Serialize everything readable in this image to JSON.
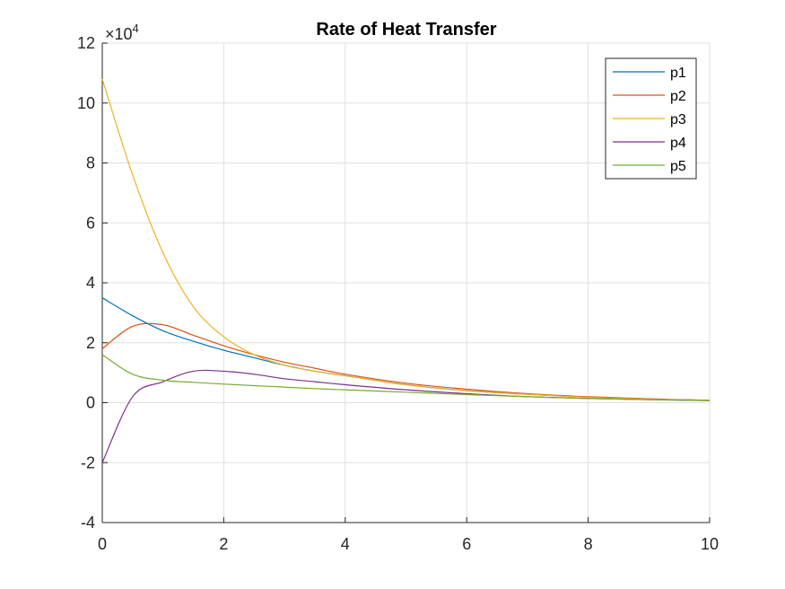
{
  "chart_data": {
    "type": "line",
    "title": "Rate of Heat Transfer",
    "xlabel": "",
    "ylabel": "",
    "y_exponent_label": "×10",
    "y_exponent_power": "4",
    "xlim": [
      0,
      10
    ],
    "ylim": [
      -4,
      12
    ],
    "x_ticks": [
      0,
      2,
      4,
      6,
      8,
      10
    ],
    "y_ticks": [
      -4,
      -2,
      0,
      2,
      4,
      6,
      8,
      10,
      12
    ],
    "grid": true,
    "legend_position": "top-right",
    "x": [
      0,
      0.5,
      1,
      1.5,
      2,
      2.5,
      3,
      3.5,
      4,
      5,
      6,
      7,
      8,
      9,
      10
    ],
    "series": [
      {
        "name": "p1",
        "color": "#0072BD",
        "values": [
          3.5,
          2.9,
          2.4,
          2.05,
          1.75,
          1.5,
          1.25,
          1.05,
          0.9,
          0.6,
          0.4,
          0.28,
          0.18,
          0.12,
          0.08
        ]
      },
      {
        "name": "p2",
        "color": "#D95319",
        "values": [
          1.8,
          2.55,
          2.6,
          2.25,
          1.9,
          1.6,
          1.35,
          1.15,
          0.95,
          0.65,
          0.45,
          0.3,
          0.2,
          0.13,
          0.08
        ]
      },
      {
        "name": "p3",
        "color": "#EDB120",
        "values": [
          10.8,
          7.6,
          5.0,
          3.2,
          2.2,
          1.6,
          1.25,
          1.05,
          0.9,
          0.6,
          0.4,
          0.28,
          0.18,
          0.12,
          0.08
        ]
      },
      {
        "name": "p4",
        "color": "#7E2F8E",
        "values": [
          -2.0,
          0.2,
          0.7,
          1.05,
          1.05,
          0.95,
          0.8,
          0.7,
          0.6,
          0.43,
          0.3,
          0.2,
          0.14,
          0.1,
          0.07
        ]
      },
      {
        "name": "p5",
        "color": "#77AC30",
        "values": [
          1.6,
          0.95,
          0.75,
          0.68,
          0.62,
          0.57,
          0.52,
          0.47,
          0.43,
          0.35,
          0.27,
          0.2,
          0.14,
          0.1,
          0.07
        ]
      }
    ]
  }
}
